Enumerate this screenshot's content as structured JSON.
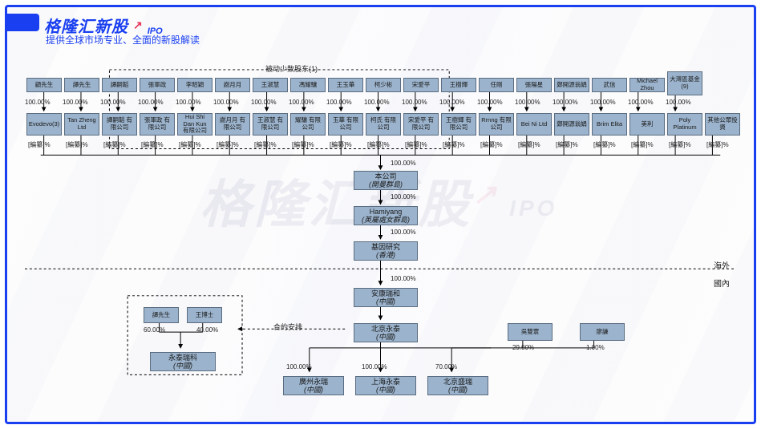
{
  "brand": {
    "logo": "格隆汇新股",
    "ipo": "IPO",
    "subtitle": "提供全球市场专业、全面的新股解读"
  },
  "watermark": {
    "text": "格隆汇新股",
    "ipo": "IPO"
  },
  "groupLabel": "被动少数股东(1)",
  "regions": {
    "overseas": "海外",
    "domestic": "國內"
  },
  "contractLabel": "合約安排",
  "topPersons": [
    "顧先生",
    "譚先生",
    "譚嗣韜",
    "張軍政",
    "李昭穎",
    "謝月月",
    "王淑慧",
    "馮耀驤",
    "王玉華",
    "柯少彬",
    "宋愛平",
    "王樹輝",
    "任剛",
    "張陽星",
    "鄭開源翁娟",
    "武信",
    "Michael Zhou",
    "大灣區基金(9)"
  ],
  "pct100": "100.00%",
  "holdcos": [
    "Evodevo(3)",
    "Tan Zheng Ltd",
    "譚嗣韜 有限公司",
    "張軍政 有限公司",
    "Hui Shi Dan Kun 有限公司",
    "謝月月 有限公司",
    "王淑慧 有限公司",
    "耀驤 有限公司",
    "玉華 有限公司",
    "柯氏 有限公司",
    "宋愛平 有限公司",
    "王樹輝 有限公司",
    "Rrnng 有限公司",
    "Bei Ni Ltd",
    "鄭開源翁娟",
    "Brim Elita",
    "美利",
    "Poly Platinum",
    "其他公眾投資"
  ],
  "redacted": "[編纂]%",
  "chain": [
    {
      "line1": "本公司",
      "line2": "(開曼群島)",
      "pctAbove": "100.00%"
    },
    {
      "line1": "Hamiyang",
      "line2": "(英屬處女群島)",
      "pctAbove": "100.00%"
    },
    {
      "line1": "基因研究",
      "line2": "(香港)",
      "pctAbove": "100.00%"
    },
    {
      "line1": "安康瑞和",
      "line2": "(中國)",
      "pctAbove": "100.00%"
    },
    {
      "line1": "北京永泰",
      "line2": "(中國)",
      "pctAbove": ""
    }
  ],
  "leftNest": {
    "persons": [
      "譚先生",
      "王博士"
    ],
    "pct": [
      "60.00%",
      "40.00%"
    ],
    "entity": {
      "line1": "永泰瑞科",
      "line2": "(中國)"
    }
  },
  "bottom": {
    "left": [
      {
        "line1": "廣州永瑞",
        "line2": "(中國)",
        "pct": "100.00%"
      },
      {
        "line1": "上海永泰",
        "line2": "(中國)",
        "pct": "100.00%"
      }
    ],
    "right": {
      "line1": "北京盛瑞",
      "line2": "(中國)",
      "pct": "70.00%"
    },
    "investors": [
      {
        "name": "吳雙寰",
        "pct": "29.00%"
      },
      {
        "name": "廖謙",
        "pct": "1.00%"
      }
    ]
  },
  "colors": {
    "node": "#9bb3cc",
    "border": "#5a6c7f",
    "frame": "#1a3ff0"
  }
}
